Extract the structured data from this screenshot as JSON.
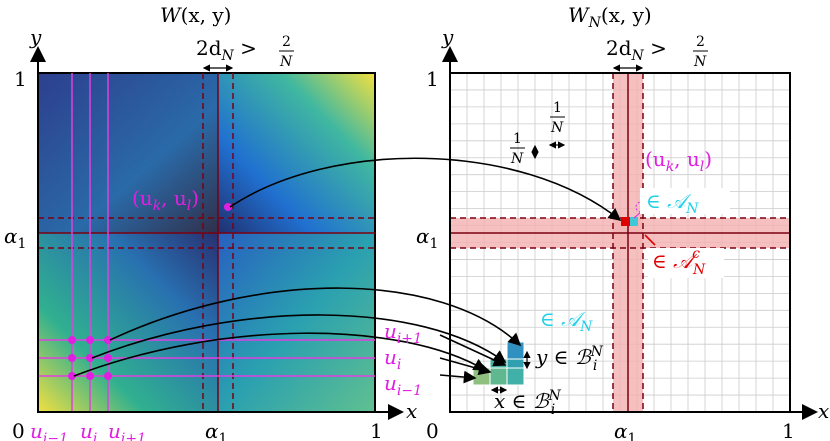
{
  "left_panel": {
    "title_base": "W",
    "title_args": "(x, y)",
    "y_axis": "y",
    "x_axis": "x",
    "y_one": "1",
    "origin": "0",
    "x_one": "1",
    "alpha_y": "α",
    "alpha_y_sub": "1",
    "alpha_x": "α",
    "alpha_x_sub": "1",
    "width_label": {
      "pre": "2d",
      "sub": "N",
      "rel": " > ",
      "num": "2",
      "den": "N"
    },
    "point": {
      "a": "(u",
      "b": "k",
      "c": ", u",
      "d": "l",
      "e": ")"
    },
    "u_bottom": [
      {
        "base": "u",
        "sub": "i−1"
      },
      {
        "base": "u",
        "sub": "i"
      },
      {
        "base": "u",
        "sub": "i+1"
      }
    ]
  },
  "right_panel": {
    "title_base": "W",
    "title_sub": "N",
    "title_args": "(x, y)",
    "y_axis": "y",
    "x_axis": "x",
    "y_one": "1",
    "origin": "0",
    "x_one": "1",
    "alpha_y": "α",
    "alpha_y_sub": "1",
    "alpha_x": "α",
    "alpha_x_sub": "1",
    "width_label": {
      "pre": "2d",
      "sub": "N",
      "rel": " > ",
      "num": "2",
      "den": "N"
    },
    "cell_w": {
      "num": "1",
      "den": "N"
    },
    "cell_h": {
      "num": "1",
      "den": "N"
    },
    "point": {
      "a": "(u",
      "b": "k",
      "c": ", u",
      "d": "l",
      "e": ")"
    },
    "in_A": {
      "pre": "∈ ",
      "set": "𝒜",
      "sub": "N"
    },
    "in_A_small": {
      "pre": "∈ ",
      "set": "𝒜",
      "sub": "N"
    },
    "in_Ac": {
      "pre": "∈ ",
      "set": "𝒜",
      "sub": "N",
      "sup": "c"
    },
    "y_in_B": {
      "pre": "y ∈ ",
      "set": "ℬ",
      "sub": "i",
      "sup": "N"
    },
    "x_in_B": {
      "pre": "x ∈ ",
      "set": "ℬ",
      "sub": "i",
      "sup": "N"
    },
    "u_side": [
      {
        "base": "u",
        "sub": "i+1"
      },
      {
        "base": "u",
        "sub": "i"
      },
      {
        "base": "u",
        "sub": "i−1"
      }
    ]
  }
}
